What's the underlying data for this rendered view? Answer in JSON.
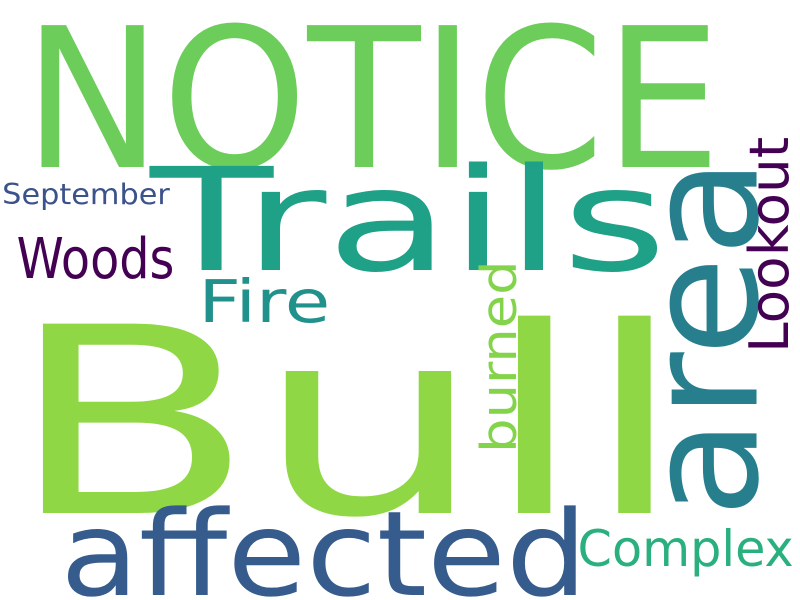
{
  "words": [
    {
      "key": "notice",
      "text": "NOTICE",
      "color": "#6ccd5a"
    },
    {
      "key": "trails",
      "text": "Trails",
      "color": "#1fa187"
    },
    {
      "key": "bull",
      "text": "Bull",
      "color": "#8fd744"
    },
    {
      "key": "area",
      "text": "area",
      "color": "#277f8e"
    },
    {
      "key": "affected",
      "text": "affected",
      "color": "#365c8d"
    },
    {
      "key": "lookout",
      "text": "Lookout",
      "color": "#440154"
    },
    {
      "key": "woods",
      "text": "Woods",
      "color": "#440154"
    },
    {
      "key": "september",
      "text": "September",
      "color": "#3b528b"
    },
    {
      "key": "fire",
      "text": "Fire",
      "color": "#21918c"
    },
    {
      "key": "burned",
      "text": "burned",
      "color": "#84d44b"
    },
    {
      "key": "complex",
      "text": "Complex",
      "color": "#2ab07f"
    }
  ]
}
